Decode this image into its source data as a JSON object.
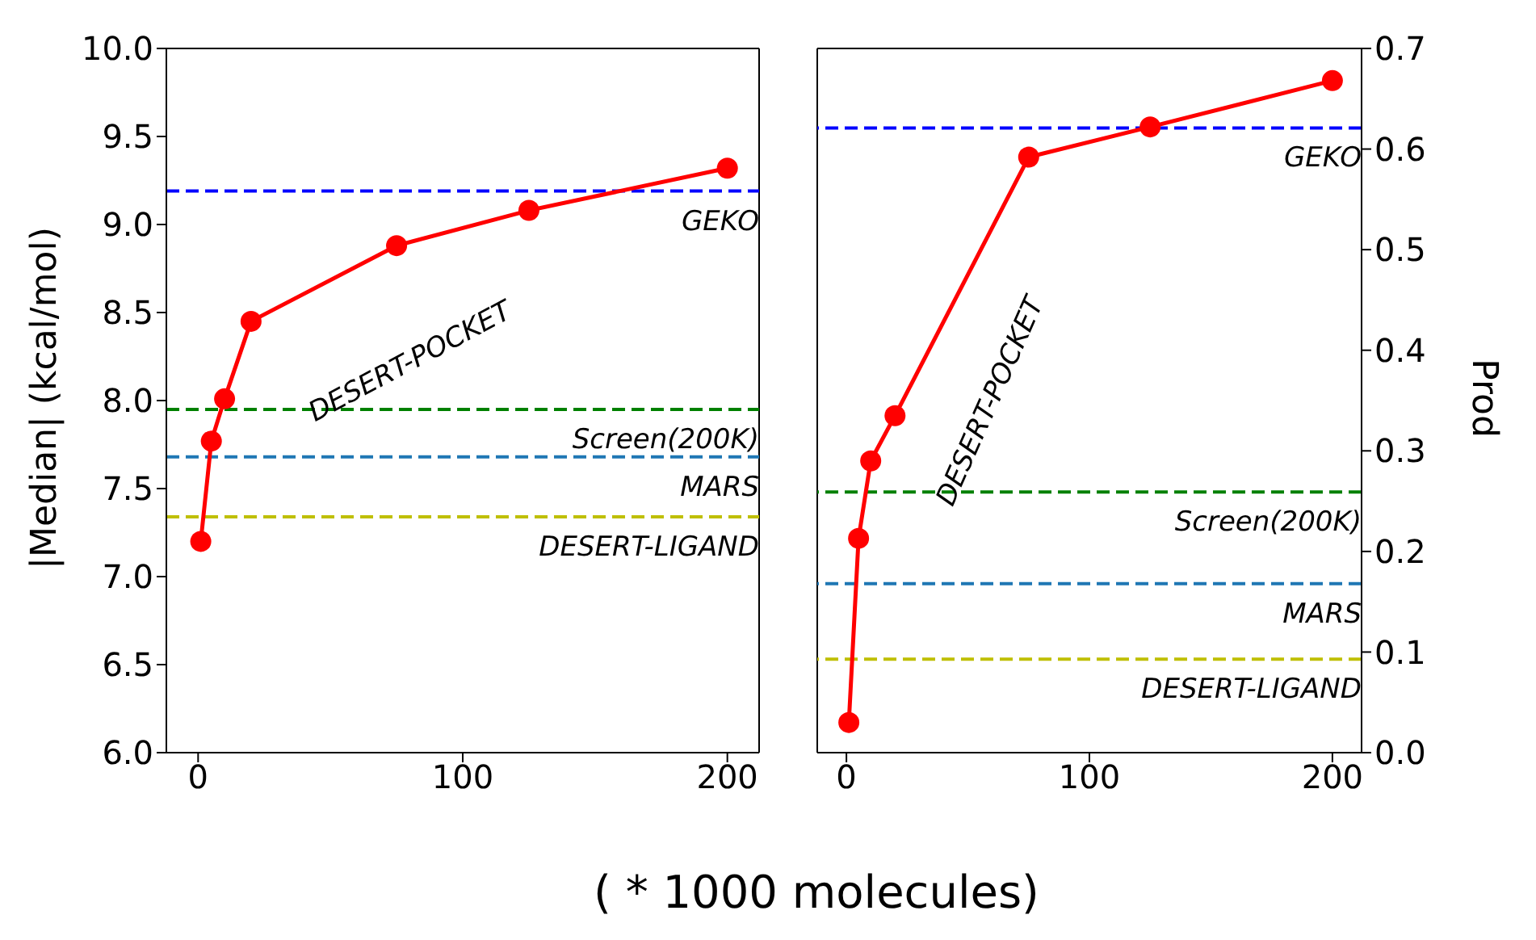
{
  "chart_data": [
    {
      "type": "line",
      "xlabel": "( * 1000 molecules)",
      "ylabel": "|Median| (kcal/mol)",
      "x": [
        1,
        5,
        10,
        20,
        75,
        125,
        200
      ],
      "xlim": [
        -12,
        212
      ],
      "xticks": [
        0,
        100,
        200
      ],
      "ylim": [
        6.0,
        10.0
      ],
      "yticks": [
        {
          "value": 6.0,
          "label": "6.0"
        },
        {
          "value": 6.5,
          "label": "6.5"
        },
        {
          "value": 7.0,
          "label": "7.0"
        },
        {
          "value": 7.5,
          "label": "7.5"
        },
        {
          "value": 8.0,
          "label": "8.0"
        },
        {
          "value": 8.5,
          "label": "8.5"
        },
        {
          "value": 9.0,
          "label": "9.0"
        },
        {
          "value": 9.5,
          "label": "9.5"
        },
        {
          "value": 10.0,
          "label": "10.0"
        }
      ],
      "marker": "circle",
      "line_style": "solid",
      "series": [
        {
          "name": "DESERT-POCKET",
          "color": "#ff0000",
          "values": [
            7.2,
            7.77,
            8.01,
            8.45,
            8.88,
            9.08,
            9.32
          ]
        }
      ],
      "ref_lines": [
        {
          "axis": "y",
          "value": 9.19,
          "label": "GEKO",
          "color": "#0000ff",
          "line_style": "dashed"
        },
        {
          "axis": "y",
          "value": 7.95,
          "label": "Screen(200K)",
          "color": "#008000",
          "line_style": "dashed"
        },
        {
          "axis": "y",
          "value": 7.68,
          "label": "MARS",
          "color": "#1f77b4",
          "line_style": "dashed"
        },
        {
          "axis": "y",
          "value": 7.34,
          "label": "DESERT-LIGAND",
          "color": "#bfbf00",
          "line_style": "dashed"
        }
      ]
    },
    {
      "type": "line",
      "ylabel": "Prod",
      "x": [
        1,
        5,
        10,
        20,
        75,
        125,
        200
      ],
      "xlim": [
        -12,
        212
      ],
      "xticks": [
        0,
        100,
        200
      ],
      "ylim": [
        0.0,
        0.7
      ],
      "yticks": [
        {
          "value": 0.0,
          "label": "0.0"
        },
        0.1,
        0.2,
        0.3,
        0.4,
        0.5,
        0.6,
        0.7
      ],
      "marker": "circle",
      "line_style": "solid",
      "series": [
        {
          "name": "DESERT-POCKET",
          "color": "#ff0000",
          "values": [
            0.03,
            0.213,
            0.29,
            0.335,
            0.592,
            0.622,
            0.668
          ]
        }
      ],
      "ref_lines": [
        {
          "axis": "y",
          "value": 0.621,
          "label": "GEKO",
          "color": "#0000ff",
          "line_style": "dashed"
        },
        {
          "axis": "y",
          "value": 0.259,
          "label": "Screen(200K)",
          "color": "#008000",
          "line_style": "dashed"
        },
        {
          "axis": "y",
          "value": 0.168,
          "label": "MARS",
          "color": "#1f77b4",
          "line_style": "dashed"
        },
        {
          "axis": "y",
          "value": 0.093,
          "label": "DESERT-LIGAND",
          "color": "#bfbf00",
          "line_style": "dashed"
        }
      ]
    }
  ]
}
